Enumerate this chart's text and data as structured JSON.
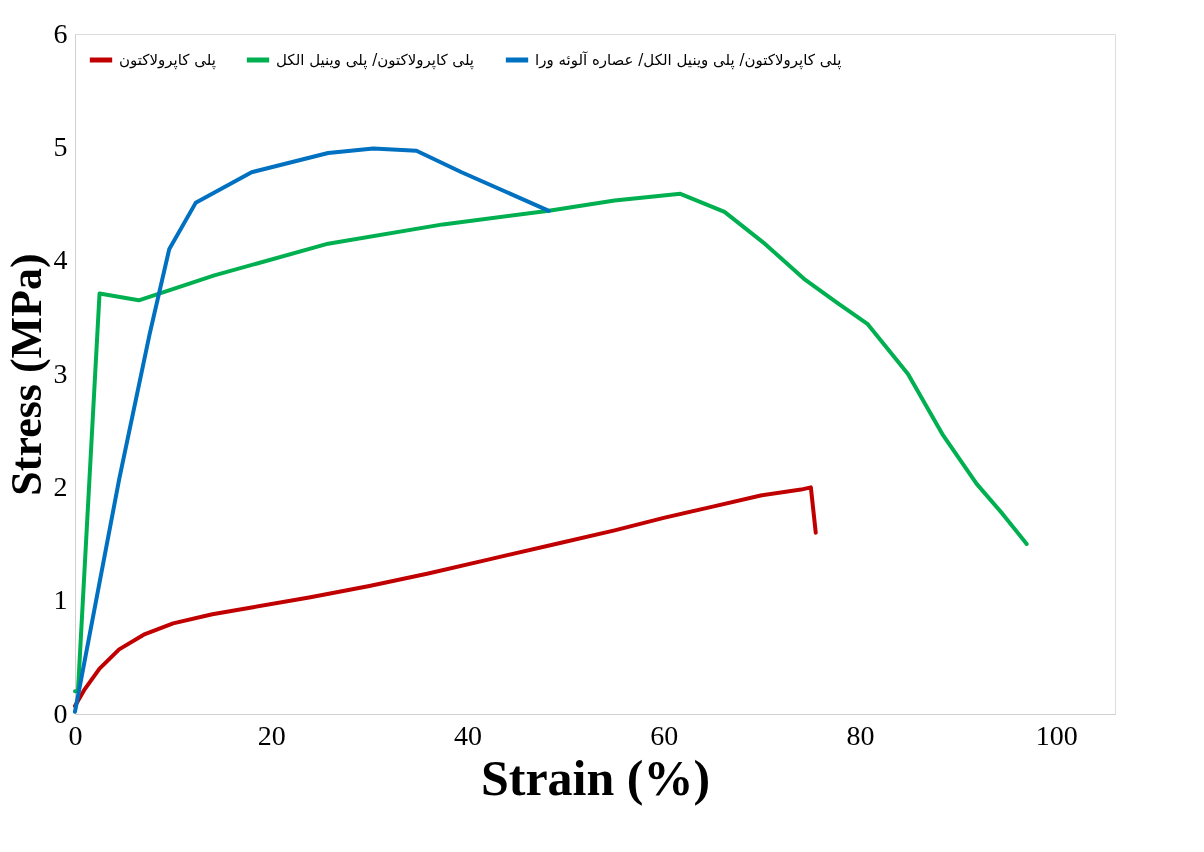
{
  "chart_data": {
    "type": "line",
    "xlabel": "Strain (%)",
    "ylabel": "Stress (MPa)",
    "xlim": [
      0,
      106
    ],
    "xticks": [
      0,
      20,
      40,
      60,
      80,
      100
    ],
    "ylim": [
      0,
      6
    ],
    "yticks": [
      0,
      1,
      2,
      3,
      4,
      5,
      6
    ],
    "grid": false,
    "legend": "top left",
    "marker": "none",
    "line_style": "solid",
    "series": [
      {
        "name": "پلی کاپرولاکتون",
        "color": "#c00000",
        "x": [
          0,
          1,
          2.5,
          4.5,
          7,
          10,
          14,
          18,
          24,
          30,
          36,
          42,
          49,
          55,
          60,
          65,
          70,
          74,
          75,
          75.5
        ],
        "values": [
          0.07,
          0.22,
          0.4,
          0.57,
          0.7,
          0.8,
          0.88,
          0.94,
          1.03,
          1.13,
          1.24,
          1.36,
          1.5,
          1.62,
          1.73,
          1.83,
          1.93,
          1.98,
          2.0,
          1.6
        ]
      },
      {
        "name": "پلی کاپرولاکتون/ پلی وینیل الکل",
        "color": "#00b050",
        "x": [
          0,
          0.3,
          2.5,
          6.5,
          14.2,
          25.8,
          37.5,
          48.3,
          55,
          61.7,
          66.2,
          70.3,
          74.3,
          77.8,
          80.8,
          84.9,
          88.4,
          91.9,
          94.5,
          97
        ],
        "values": [
          0.2,
          0.2,
          3.71,
          3.65,
          3.87,
          4.15,
          4.32,
          4.44,
          4.53,
          4.59,
          4.43,
          4.15,
          3.84,
          3.62,
          3.44,
          3.0,
          2.47,
          2.03,
          1.77,
          1.5
        ]
      },
      {
        "name": "پلی کاپرولاکتون/ پلی وینیل الکل/ عصاره آلوئه ورا",
        "color": "#0070c0",
        "x": [
          0,
          4.5,
          7.6,
          9.6,
          12.3,
          18,
          25.8,
          30.4,
          34.8,
          39.4,
          48.3
        ],
        "values": [
          0.02,
          2.07,
          3.35,
          4.1,
          4.51,
          4.78,
          4.95,
          4.99,
          4.97,
          4.78,
          4.44
        ]
      }
    ]
  }
}
